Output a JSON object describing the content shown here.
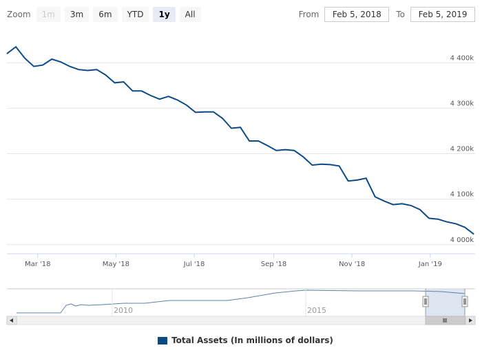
{
  "zoom": {
    "label": "Zoom",
    "buttons": [
      {
        "label": "1m",
        "state": "disabled"
      },
      {
        "label": "3m",
        "state": "normal"
      },
      {
        "label": "6m",
        "state": "normal"
      },
      {
        "label": "YTD",
        "state": "normal"
      },
      {
        "label": "1y",
        "state": "selected"
      },
      {
        "label": "All",
        "state": "normal"
      }
    ]
  },
  "range": {
    "from_label": "From",
    "from_value": "Feb 5, 2018",
    "to_label": "To",
    "to_value": "Feb 5, 2019"
  },
  "colors": {
    "series": "#0b4a85",
    "navigator_line": "#5a7fb0",
    "navigator_mask": "#d4deee"
  },
  "chart_data": {
    "type": "line",
    "title": "",
    "xlabel": "",
    "ylabel": "",
    "x_range": [
      "2018-02-05",
      "2019-02-05"
    ],
    "ylim": [
      3980000,
      4470000
    ],
    "y_ticks": [
      {
        "value": 4000000,
        "label": "4 000k"
      },
      {
        "value": 4100000,
        "label": "4 100k"
      },
      {
        "value": 4200000,
        "label": "4 200k"
      },
      {
        "value": 4300000,
        "label": "4 300k"
      },
      {
        "value": 4400000,
        "label": "4 400k"
      }
    ],
    "x_ticks": [
      {
        "date": "2018-03-01",
        "label": "Mar '18"
      },
      {
        "date": "2018-05-01",
        "label": "May '18"
      },
      {
        "date": "2018-07-01",
        "label": "Jul '18"
      },
      {
        "date": "2018-09-01",
        "label": "Sep '18"
      },
      {
        "date": "2018-11-01",
        "label": "Nov '18"
      },
      {
        "date": "2019-01-01",
        "label": "Jan '19"
      }
    ],
    "grid": true,
    "legend_position": "bottom-center",
    "series": [
      {
        "name": "Total Assets (In millions of dollars)",
        "x": [
          "2018-02-05",
          "2018-02-12",
          "2018-02-19",
          "2018-02-26",
          "2018-03-05",
          "2018-03-12",
          "2018-03-19",
          "2018-03-26",
          "2018-04-02",
          "2018-04-09",
          "2018-04-16",
          "2018-04-23",
          "2018-04-30",
          "2018-05-07",
          "2018-05-14",
          "2018-05-21",
          "2018-05-28",
          "2018-06-04",
          "2018-06-11",
          "2018-06-18",
          "2018-06-25",
          "2018-07-02",
          "2018-07-09",
          "2018-07-16",
          "2018-07-23",
          "2018-07-30",
          "2018-08-06",
          "2018-08-13",
          "2018-08-20",
          "2018-08-27",
          "2018-09-03",
          "2018-09-10",
          "2018-09-17",
          "2018-09-24",
          "2018-10-01",
          "2018-10-08",
          "2018-10-15",
          "2018-10-22",
          "2018-10-29",
          "2018-11-05",
          "2018-11-12",
          "2018-11-19",
          "2018-11-26",
          "2018-12-03",
          "2018-12-10",
          "2018-12-17",
          "2018-12-24",
          "2018-12-31",
          "2019-01-07",
          "2019-01-14",
          "2019-01-21",
          "2019-01-28",
          "2019-02-04"
        ],
        "y": [
          4420000,
          4435000,
          4410000,
          4392000,
          4395000,
          4408000,
          4402000,
          4392000,
          4385000,
          4383000,
          4385000,
          4373000,
          4356000,
          4358000,
          4338000,
          4338000,
          4328000,
          4320000,
          4326000,
          4318000,
          4307000,
          4291000,
          4292000,
          4292000,
          4278000,
          4256000,
          4258000,
          4228000,
          4228000,
          4218000,
          4207000,
          4209000,
          4207000,
          4193000,
          4175000,
          4177000,
          4176000,
          4173000,
          4140000,
          4142000,
          4146000,
          4105000,
          4096000,
          4088000,
          4090000,
          4086000,
          4077000,
          4058000,
          4056000,
          4050000,
          4046000,
          4038000,
          4023000
        ]
      }
    ],
    "navigator": {
      "x_ticks": [
        {
          "label": "2010"
        },
        {
          "label": "2015"
        }
      ]
    }
  }
}
